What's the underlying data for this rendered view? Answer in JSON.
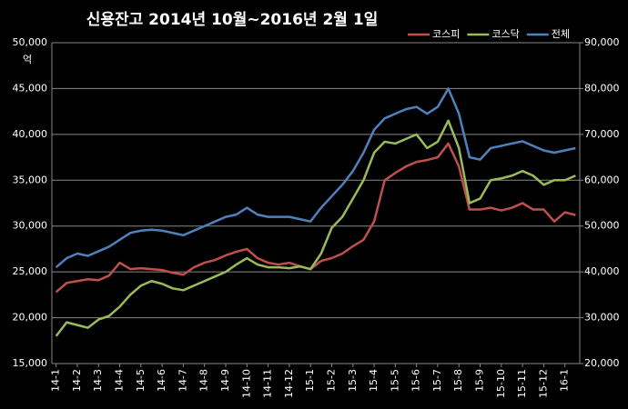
{
  "chart_data": {
    "type": "line",
    "title": "신용잔고 2014년 10월~2016년 2월 1일",
    "y_unit": "억",
    "x": [
      0,
      0.5,
      1,
      1.5,
      2,
      2.5,
      3,
      3.5,
      4,
      4.5,
      5,
      5.5,
      6,
      6.5,
      7,
      7.5,
      8,
      8.5,
      9,
      9.5,
      10,
      10.5,
      11,
      11.5,
      12,
      12.5,
      13,
      13.5,
      14,
      14.5,
      15,
      15.5,
      16,
      16.5,
      17,
      17.5,
      18,
      18.5,
      19,
      19.5,
      20,
      20.5,
      21,
      21.5,
      22,
      22.5,
      23,
      23.5,
      24,
      24.5
    ],
    "xlim": [
      -0.2,
      24.7
    ],
    "xticks": [
      {
        "value": 0,
        "label": "14-1"
      },
      {
        "value": 1,
        "label": "14-2"
      },
      {
        "value": 2,
        "label": "14-3"
      },
      {
        "value": 3,
        "label": "14-4"
      },
      {
        "value": 4,
        "label": "14-5"
      },
      {
        "value": 5,
        "label": "14-6"
      },
      {
        "value": 6,
        "label": "14-7"
      },
      {
        "value": 7,
        "label": "14-8"
      },
      {
        "value": 8,
        "label": "14-9"
      },
      {
        "value": 9,
        "label": "14-10"
      },
      {
        "value": 10,
        "label": "14-11"
      },
      {
        "value": 11,
        "label": "14-12"
      },
      {
        "value": 12,
        "label": "15-1"
      },
      {
        "value": 13,
        "label": "15-2"
      },
      {
        "value": 14,
        "label": "15-3"
      },
      {
        "value": 15,
        "label": "15-4"
      },
      {
        "value": 16,
        "label": "15-5"
      },
      {
        "value": 17,
        "label": "15-6"
      },
      {
        "value": 18,
        "label": "15-7"
      },
      {
        "value": 19,
        "label": "15-8"
      },
      {
        "value": 20,
        "label": "15-9"
      },
      {
        "value": 21,
        "label": "15-10"
      },
      {
        "value": 22,
        "label": "15-11"
      },
      {
        "value": 23,
        "label": "15-12"
      },
      {
        "value": 24,
        "label": "16-1"
      }
    ],
    "ylim": [
      15000,
      50000
    ],
    "yticks": [
      {
        "value": 15000,
        "label": "15,000"
      },
      {
        "value": 20000,
        "label": "20,000"
      },
      {
        "value": 25000,
        "label": "25,000"
      },
      {
        "value": 30000,
        "label": "30,000"
      },
      {
        "value": 35000,
        "label": "35,000"
      },
      {
        "value": 40000,
        "label": "40,000"
      },
      {
        "value": 45000,
        "label": "45,000"
      },
      {
        "value": 50000,
        "label": "50,000"
      }
    ],
    "y2lim": [
      20000,
      90000
    ],
    "y2ticks": [
      {
        "value": 20000,
        "label": "20,000"
      },
      {
        "value": 30000,
        "label": "30,000"
      },
      {
        "value": 40000,
        "label": "40,000"
      },
      {
        "value": 50000,
        "label": "50,000"
      },
      {
        "value": 60000,
        "label": "60,000"
      },
      {
        "value": 70000,
        "label": "70,000"
      },
      {
        "value": 80000,
        "label": "80,000"
      },
      {
        "value": 90000,
        "label": "90,000"
      }
    ],
    "grid": true,
    "legend": "top-right",
    "series": [
      {
        "name": "코스피",
        "color": "#c0504d",
        "values": [
          22800,
          23800,
          24000,
          24200,
          24100,
          24600,
          26000,
          25300,
          25400,
          25300,
          25200,
          24900,
          24700,
          25500,
          26000,
          26300,
          26800,
          27200,
          27500,
          26500,
          26000,
          25800,
          26000,
          25600,
          25300,
          26200,
          26500,
          27000,
          27800,
          28500,
          30500,
          35000,
          35800,
          36500,
          37000,
          37200,
          37500,
          39000,
          36500,
          31800,
          31800,
          32000,
          31700,
          32000,
          32500,
          31800,
          31800,
          30500,
          31500,
          31200
        ]
      },
      {
        "name": "코스닥",
        "color": "#9bbb59",
        "values": [
          18000,
          19500,
          19200,
          18900,
          19800,
          20200,
          21200,
          22500,
          23500,
          24000,
          23700,
          23200,
          23000,
          23500,
          24000,
          24500,
          25000,
          25800,
          26500,
          25800,
          25500,
          25500,
          25400,
          25600,
          25300,
          27000,
          29800,
          31000,
          33000,
          35000,
          38000,
          39200,
          39000,
          39500,
          40000,
          38500,
          39200,
          41500,
          38500,
          32500,
          33000,
          35000,
          35200,
          35500,
          36000,
          35500,
          34500,
          35000,
          35000,
          35500
        ]
      },
      {
        "name": "전체",
        "color": "#4f81bd",
        "axis": "y2",
        "values": [
          41000,
          43000,
          44000,
          43500,
          44500,
          45500,
          47000,
          48500,
          49000,
          49200,
          49000,
          48500,
          48000,
          49000,
          50000,
          51000,
          52000,
          52500,
          54000,
          52500,
          52000,
          52000,
          52000,
          51500,
          51000,
          54000,
          56500,
          59000,
          62000,
          66000,
          71000,
          73500,
          74500,
          75500,
          76000,
          74500,
          76000,
          80000,
          74500,
          65000,
          64500,
          67000,
          67500,
          68000,
          68500,
          67500,
          66500,
          66000,
          66500,
          67000
        ]
      }
    ]
  }
}
